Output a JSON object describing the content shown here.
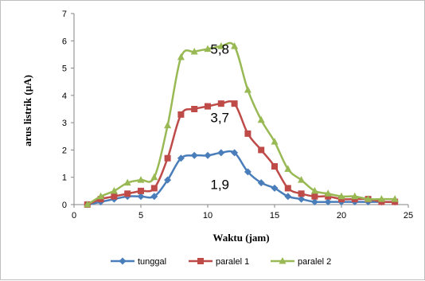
{
  "chart_data": {
    "type": "line",
    "xlabel": "Waktu (jam)",
    "ylabel": "arus listrik (µA)",
    "xlim": [
      0,
      25
    ],
    "ylim": [
      0,
      7
    ],
    "xticks": [
      0,
      5,
      10,
      15,
      20,
      25
    ],
    "yticks": [
      0,
      1,
      2,
      3,
      4,
      5,
      6,
      7
    ],
    "grid": false,
    "legend_position": "bottom",
    "x": [
      1,
      2,
      3,
      4,
      5,
      6,
      7,
      8,
      9,
      10,
      11,
      12,
      13,
      14,
      15,
      16,
      17,
      18,
      19,
      20,
      21,
      22,
      23,
      24
    ],
    "series": [
      {
        "name": "tunggal",
        "color": "#4a7ebb",
        "marker": "diamond",
        "values": [
          0.0,
          0.1,
          0.2,
          0.3,
          0.3,
          0.3,
          0.9,
          1.7,
          1.8,
          1.8,
          1.9,
          1.9,
          1.2,
          0.8,
          0.6,
          0.3,
          0.2,
          0.1,
          0.1,
          0.1,
          0.1,
          0.1,
          0.1,
          0.1
        ]
      },
      {
        "name": "paralel 1",
        "color": "#be4b48",
        "marker": "square",
        "values": [
          0.0,
          0.2,
          0.3,
          0.4,
          0.5,
          0.6,
          1.7,
          3.3,
          3.5,
          3.6,
          3.7,
          3.7,
          2.6,
          2.0,
          1.4,
          0.6,
          0.4,
          0.3,
          0.3,
          0.2,
          0.2,
          0.2,
          0.1,
          0.1
        ]
      },
      {
        "name": "paralel 2",
        "color": "#98b954",
        "marker": "triangle",
        "values": [
          0.0,
          0.3,
          0.5,
          0.8,
          0.9,
          1.0,
          2.9,
          5.4,
          5.6,
          5.7,
          5.8,
          5.8,
          4.2,
          3.1,
          2.3,
          1.3,
          0.9,
          0.5,
          0.4,
          0.3,
          0.3,
          0.2,
          0.2,
          0.2
        ]
      }
    ],
    "annotations": [
      {
        "text": "5,8",
        "x": 10.2,
        "y": 5.7
      },
      {
        "text": "3,7",
        "x": 10.2,
        "y": 3.2
      },
      {
        "text": "1,9",
        "x": 10.2,
        "y": 0.75
      }
    ]
  }
}
